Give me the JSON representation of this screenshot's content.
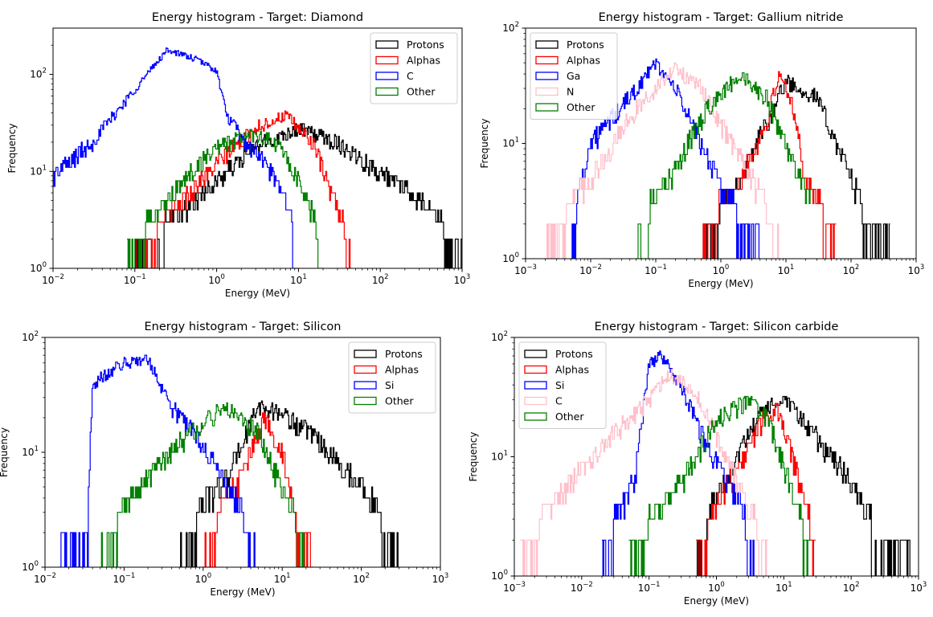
{
  "chart_data": [
    {
      "type": "histogram",
      "title": "Energy histogram - Target: Diamond",
      "xlabel": "Energy (MeV)",
      "ylabel": "Frequency",
      "xscale": "log",
      "yscale": "log",
      "xlim": [
        0.01,
        1000
      ],
      "ylim": [
        1,
        300
      ],
      "xticks": [
        {
          "v": 0.01,
          "base": "10",
          "exp": "−2"
        },
        {
          "v": 0.1,
          "base": "10",
          "exp": "−1"
        },
        {
          "v": 1,
          "base": "10",
          "exp": "0"
        },
        {
          "v": 10,
          "base": "10",
          "exp": "1"
        },
        {
          "v": 100,
          "base": "10",
          "exp": "2"
        },
        {
          "v": 1000,
          "base": "10",
          "exp": "3"
        }
      ],
      "yticks": [
        {
          "v": 1,
          "base": "10",
          "exp": "0"
        },
        {
          "v": 10,
          "base": "10",
          "exp": "1"
        },
        {
          "v": 100,
          "base": "10",
          "exp": "2"
        }
      ],
      "legend_position": "top-right",
      "series": [
        {
          "name": "Protons",
          "color": "#000000",
          "profile": [
            [
              0.1,
              2
            ],
            [
              0.4,
              4
            ],
            [
              1,
              8
            ],
            [
              3,
              18
            ],
            [
              10,
              28
            ],
            [
              30,
              20
            ],
            [
              100,
              10
            ],
            [
              300,
              5
            ],
            [
              1000,
              2
            ]
          ]
        },
        {
          "name": "Alphas",
          "color": "#ff0000",
          "profile": [
            [
              0.1,
              2
            ],
            [
              0.3,
              4
            ],
            [
              1,
              12
            ],
            [
              3,
              28
            ],
            [
              7,
              38
            ],
            [
              15,
              20
            ],
            [
              25,
              6
            ],
            [
              45,
              2
            ]
          ]
        },
        {
          "name": "C",
          "color": "#0000ff",
          "profile": [
            [
              0.01,
              9
            ],
            [
              0.03,
              20
            ],
            [
              0.1,
              70
            ],
            [
              0.25,
              180
            ],
            [
              0.6,
              140
            ],
            [
              1,
              110
            ],
            [
              1.3,
              40
            ],
            [
              2,
              22
            ],
            [
              4,
              12
            ],
            [
              8,
              4
            ],
            [
              10,
              1
            ]
          ]
        },
        {
          "name": "Other",
          "color": "#008000",
          "profile": [
            [
              0.08,
              2
            ],
            [
              0.2,
              4
            ],
            [
              0.5,
              10
            ],
            [
              1,
              18
            ],
            [
              3,
              25
            ],
            [
              6,
              18
            ],
            [
              12,
              6
            ],
            [
              20,
              2
            ]
          ]
        }
      ]
    },
    {
      "type": "histogram",
      "title": "Energy histogram - Target: Gallium nitride",
      "xlabel": "Energy (MeV)",
      "ylabel": "Frequency",
      "xscale": "log",
      "yscale": "log",
      "xlim": [
        0.001,
        1000
      ],
      "ylim": [
        1,
        100
      ],
      "xticks": [
        {
          "v": 0.001,
          "base": "10",
          "exp": "−3"
        },
        {
          "v": 0.01,
          "base": "10",
          "exp": "−2"
        },
        {
          "v": 0.1,
          "base": "10",
          "exp": "−1"
        },
        {
          "v": 1,
          "base": "10",
          "exp": "0"
        },
        {
          "v": 10,
          "base": "10",
          "exp": "1"
        },
        {
          "v": 100,
          "base": "10",
          "exp": "2"
        },
        {
          "v": 1000,
          "base": "10",
          "exp": "3"
        }
      ],
      "yticks": [
        {
          "v": 1,
          "base": "10",
          "exp": "0"
        },
        {
          "v": 10,
          "base": "10",
          "exp": "1"
        },
        {
          "v": 100,
          "base": "10",
          "exp": "2"
        }
      ],
      "legend_position": "top-left",
      "series": [
        {
          "name": "Protons",
          "color": "#000000",
          "profile": [
            [
              0.5,
              2
            ],
            [
              2,
              5
            ],
            [
              5,
              15
            ],
            [
              10,
              35
            ],
            [
              30,
              25
            ],
            [
              60,
              10
            ],
            [
              150,
              3
            ],
            [
              400,
              2
            ]
          ]
        },
        {
          "name": "Alphas",
          "color": "#ff0000",
          "profile": [
            [
              0.5,
              2
            ],
            [
              2,
              5
            ],
            [
              5,
              15
            ],
            [
              8,
              40
            ],
            [
              12,
              25
            ],
            [
              20,
              5
            ],
            [
              60,
              2
            ]
          ]
        },
        {
          "name": "Ga",
          "color": "#0000ff",
          "profile": [
            [
              0.005,
              2
            ],
            [
              0.01,
              10
            ],
            [
              0.04,
              25
            ],
            [
              0.1,
              50
            ],
            [
              0.2,
              30
            ],
            [
              0.5,
              10
            ],
            [
              1,
              4
            ],
            [
              4,
              2
            ]
          ]
        },
        {
          "name": "N",
          "color": "#ffc0cb",
          "profile": [
            [
              0.002,
              2
            ],
            [
              0.01,
              5
            ],
            [
              0.05,
              20
            ],
            [
              0.2,
              45
            ],
            [
              0.5,
              30
            ],
            [
              1,
              15
            ],
            [
              3,
              5
            ],
            [
              8,
              2
            ]
          ]
        },
        {
          "name": "Other",
          "color": "#008000",
          "profile": [
            [
              0.05,
              2
            ],
            [
              0.2,
              6
            ],
            [
              0.6,
              20
            ],
            [
              2,
              40
            ],
            [
              5,
              25
            ],
            [
              10,
              10
            ],
            [
              25,
              3
            ]
          ]
        }
      ]
    },
    {
      "type": "histogram",
      "title": "Energy histogram - Target: Silicon",
      "xlabel": "Energy (MeV)",
      "ylabel": "Frequency",
      "xscale": "log",
      "yscale": "log",
      "xlim": [
        0.01,
        1000
      ],
      "ylim": [
        1,
        100
      ],
      "xticks": [
        {
          "v": 0.01,
          "base": "10",
          "exp": "−2"
        },
        {
          "v": 0.1,
          "base": "10",
          "exp": "−1"
        },
        {
          "v": 1,
          "base": "10",
          "exp": "0"
        },
        {
          "v": 10,
          "base": "10",
          "exp": "1"
        },
        {
          "v": 100,
          "base": "10",
          "exp": "2"
        },
        {
          "v": 1000,
          "base": "10",
          "exp": "3"
        }
      ],
      "yticks": [
        {
          "v": 1,
          "base": "10",
          "exp": "0"
        },
        {
          "v": 10,
          "base": "10",
          "exp": "1"
        },
        {
          "v": 100,
          "base": "10",
          "exp": "2"
        }
      ],
      "legend_position": "top-right",
      "series": [
        {
          "name": "Protons",
          "color": "#000000",
          "profile": [
            [
              0.5,
              2
            ],
            [
              2,
              6
            ],
            [
              5,
              25
            ],
            [
              10,
              22
            ],
            [
              30,
              12
            ],
            [
              100,
              5
            ],
            [
              300,
              2
            ]
          ]
        },
        {
          "name": "Alphas",
          "color": "#ff0000",
          "profile": [
            [
              1,
              2
            ],
            [
              3,
              6
            ],
            [
              6,
              20
            ],
            [
              10,
              10
            ],
            [
              15,
              3
            ],
            [
              25,
              2
            ]
          ]
        },
        {
          "name": "Si",
          "color": "#0000ff",
          "profile": [
            [
              0.015,
              2
            ],
            [
              0.035,
              3
            ],
            [
              0.04,
              40
            ],
            [
              0.1,
              60
            ],
            [
              0.2,
              65
            ],
            [
              0.4,
              25
            ],
            [
              1,
              12
            ],
            [
              2,
              5
            ],
            [
              5,
              2
            ]
          ]
        },
        {
          "name": "Other",
          "color": "#008000",
          "profile": [
            [
              0.05,
              2
            ],
            [
              0.2,
              6
            ],
            [
              0.7,
              15
            ],
            [
              2,
              25
            ],
            [
              5,
              15
            ],
            [
              10,
              5
            ],
            [
              20,
              2
            ]
          ]
        }
      ]
    },
    {
      "type": "histogram",
      "title": "Energy histogram - Target: Silicon carbide",
      "xlabel": "Energy (MeV)",
      "ylabel": "Frequency",
      "xscale": "log",
      "yscale": "log",
      "xlim": [
        0.001,
        1000
      ],
      "ylim": [
        1,
        100
      ],
      "xticks": [
        {
          "v": 0.001,
          "base": "10",
          "exp": "−3"
        },
        {
          "v": 0.01,
          "base": "10",
          "exp": "−2"
        },
        {
          "v": 0.1,
          "base": "10",
          "exp": "−1"
        },
        {
          "v": 1,
          "base": "10",
          "exp": "0"
        },
        {
          "v": 10,
          "base": "10",
          "exp": "1"
        },
        {
          "v": 100,
          "base": "10",
          "exp": "2"
        },
        {
          "v": 1000,
          "base": "10",
          "exp": "3"
        }
      ],
      "yticks": [
        {
          "v": 1,
          "base": "10",
          "exp": "0"
        },
        {
          "v": 10,
          "base": "10",
          "exp": "1"
        },
        {
          "v": 100,
          "base": "10",
          "exp": "2"
        }
      ],
      "legend_position": "top-left",
      "series": [
        {
          "name": "Protons",
          "color": "#000000",
          "profile": [
            [
              0.5,
              2
            ],
            [
              2,
              10
            ],
            [
              5,
              25
            ],
            [
              10,
              30
            ],
            [
              30,
              15
            ],
            [
              100,
              6
            ],
            [
              300,
              2
            ],
            [
              800,
              1.5
            ]
          ]
        },
        {
          "name": "Alphas",
          "color": "#ff0000",
          "profile": [
            [
              0.5,
              2
            ],
            [
              2,
              8
            ],
            [
              5,
              20
            ],
            [
              8,
              25
            ],
            [
              15,
              8
            ],
            [
              30,
              2
            ]
          ]
        },
        {
          "name": "Si",
          "color": "#0000ff",
          "profile": [
            [
              0.02,
              2
            ],
            [
              0.06,
              6
            ],
            [
              0.1,
              60
            ],
            [
              0.15,
              70
            ],
            [
              0.3,
              40
            ],
            [
              0.6,
              15
            ],
            [
              1.5,
              6
            ],
            [
              4,
              2
            ]
          ]
        },
        {
          "name": "C",
          "color": "#ffc0cb",
          "profile": [
            [
              0.0012,
              2
            ],
            [
              0.005,
              5
            ],
            [
              0.02,
              12
            ],
            [
              0.1,
              30
            ],
            [
              0.2,
              50
            ],
            [
              0.5,
              35
            ],
            [
              1,
              15
            ],
            [
              3,
              4
            ],
            [
              6,
              2
            ]
          ]
        },
        {
          "name": "Other",
          "color": "#008000",
          "profile": [
            [
              0.05,
              2
            ],
            [
              0.3,
              6
            ],
            [
              1,
              20
            ],
            [
              3,
              30
            ],
            [
              6,
              20
            ],
            [
              12,
              6
            ],
            [
              25,
              2
            ]
          ]
        }
      ]
    }
  ]
}
